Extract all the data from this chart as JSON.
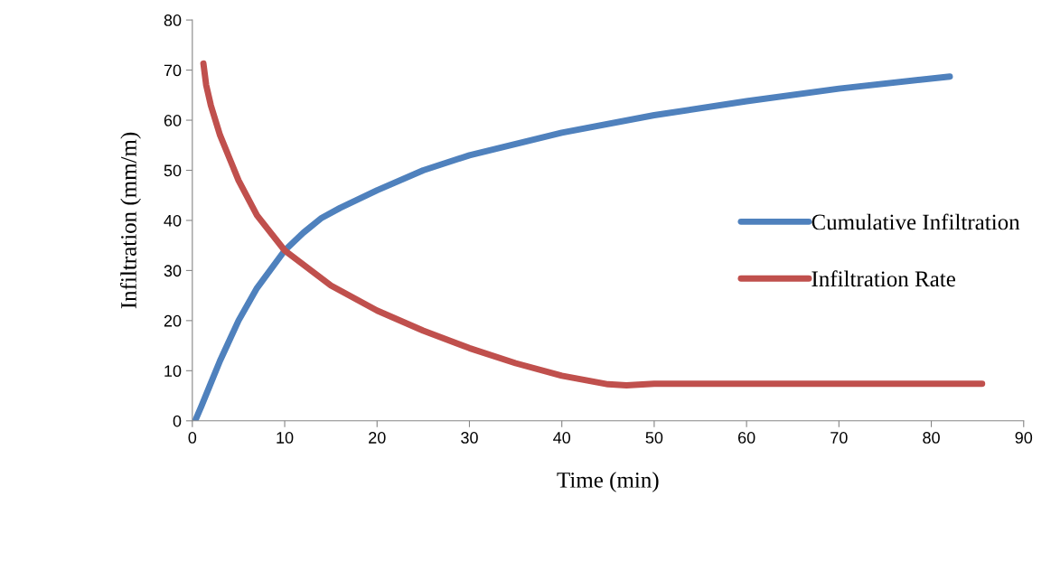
{
  "chart_data": {
    "type": "line",
    "xlabel": "Time (min)",
    "ylabel": "Infiltration (mm/m)",
    "xlim": [
      0,
      90
    ],
    "xticks": [
      0,
      10,
      20,
      30,
      40,
      50,
      60,
      70,
      80,
      90
    ],
    "ylim": [
      0,
      80
    ],
    "yticks": [
      0,
      10,
      20,
      30,
      40,
      50,
      60,
      70,
      80
    ],
    "grid": false,
    "legend": "right",
    "marker": "none",
    "line_style": "solid",
    "series": [
      {
        "name": "Cumulative Infiltration",
        "color": "#4f81bd",
        "x": [
          0.3,
          1,
          2,
          3,
          5,
          7,
          10,
          12,
          14,
          16,
          20,
          25,
          30,
          40,
          50,
          60,
          70,
          82
        ],
        "values": [
          0,
          3,
          7.5,
          12,
          20,
          26.5,
          34,
          37.5,
          40.5,
          42.5,
          46,
          50,
          53,
          57.5,
          61,
          63.8,
          66.3,
          68.7
        ]
      },
      {
        "name": "Infiltration Rate",
        "color": "#c0504d",
        "x": [
          1.2,
          1.5,
          2,
          3,
          5,
          7,
          10,
          15,
          20,
          25,
          30,
          35,
          40,
          45,
          47,
          50,
          60,
          70,
          85.5
        ],
        "values": [
          71.3,
          67,
          63,
          57,
          48,
          41,
          34,
          27,
          22,
          18,
          14.5,
          11.5,
          9,
          7.3,
          7.1,
          7.4,
          7.4,
          7.4,
          7.4
        ]
      }
    ]
  }
}
